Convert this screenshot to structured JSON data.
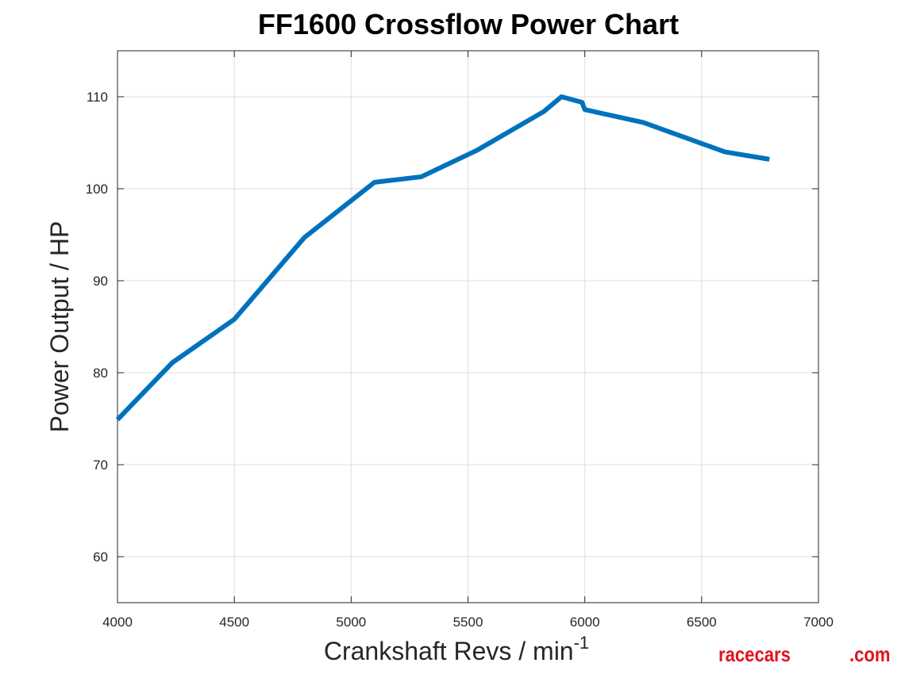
{
  "chart_data": {
    "type": "line",
    "title": "FF1600 Crossflow Power Chart",
    "xlabel": "Crankshaft Revs / min",
    "xlabel_superscript": "-1",
    "ylabel": "Power Output / HP",
    "xlim": [
      4000,
      7000
    ],
    "ylim": [
      55,
      115
    ],
    "xticks": [
      4000,
      4500,
      5000,
      5500,
      6000,
      6500,
      7000
    ],
    "yticks": [
      60,
      70,
      80,
      90,
      100,
      110
    ],
    "grid": true,
    "line_color": "#0072bd",
    "series": [
      {
        "x": [
          4000,
          4235,
          4500,
          4800,
          5100,
          5300,
          5540,
          5825,
          5900,
          5988,
          6000,
          6250,
          6600,
          6790
        ],
        "y": [
          74.9,
          81.1,
          85.8,
          94.7,
          100.7,
          101.3,
          104.2,
          108.4,
          110.0,
          109.4,
          108.6,
          107.2,
          104.0,
          103.2
        ]
      }
    ]
  },
  "watermark": {
    "left": "racecars",
    "right": ".com",
    "color": "#e0141e"
  }
}
